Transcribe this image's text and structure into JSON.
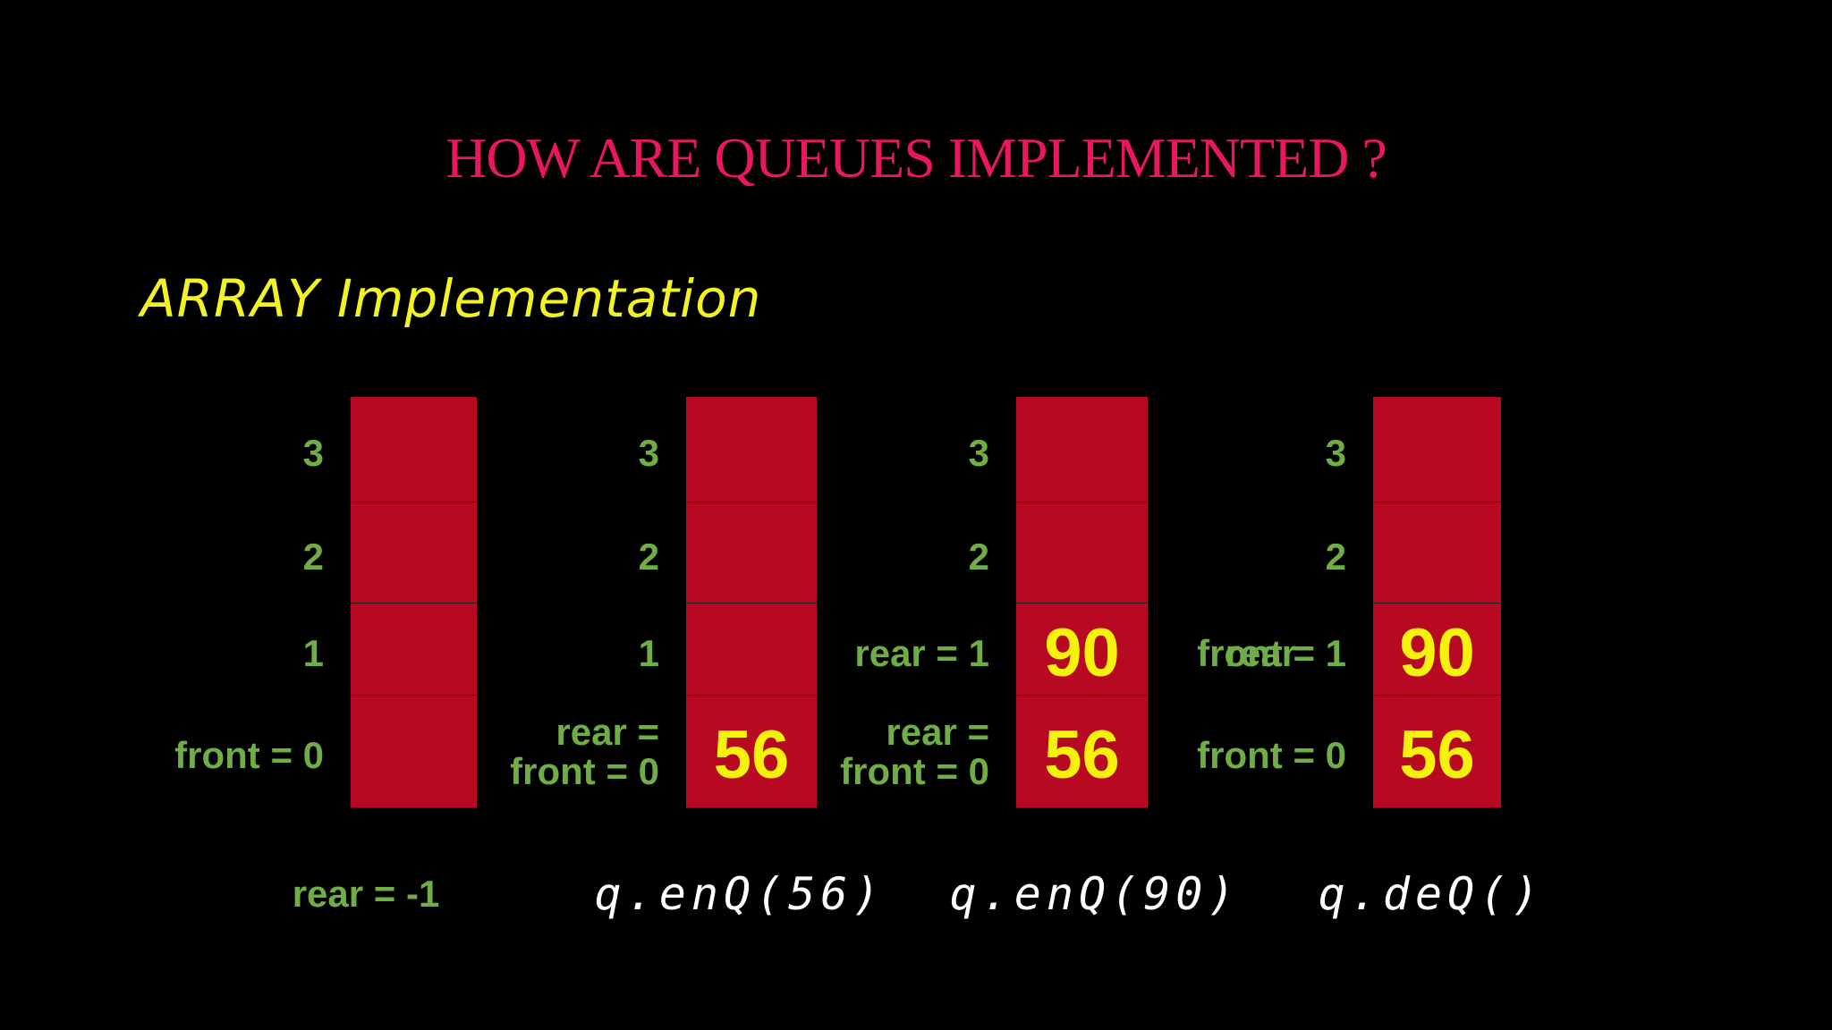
{
  "title": "HOW ARE QUEUES IMPLEMENTED ?",
  "subtitle": "ARRAY Implementation",
  "panels": [
    {
      "rows": [
        {
          "labels": [
            "3"
          ]
        },
        {
          "labels": [
            "2"
          ]
        },
        {
          "labels": [
            "1"
          ]
        },
        {
          "labels": [
            "front =  0"
          ]
        }
      ],
      "caption": "rear = -1"
    },
    {
      "rows": [
        {
          "labels": [
            "3"
          ]
        },
        {
          "labels": [
            "2"
          ]
        },
        {
          "labels": [
            "1"
          ]
        },
        {
          "labels": [
            "rear =",
            "front = 0"
          ],
          "value": 56
        }
      ],
      "caption": "q.enQ(56)"
    },
    {
      "rows": [
        {
          "labels": [
            "3"
          ]
        },
        {
          "labels": [
            "2"
          ]
        },
        {
          "labels": [
            "rear = 1"
          ],
          "value": 90
        },
        {
          "labels": [
            "rear =",
            "front = 0"
          ],
          "value": 56
        }
      ],
      "caption": "q.enQ(90)"
    },
    {
      "rows": [
        {
          "labels": [
            "3"
          ]
        },
        {
          "labels": [
            "2"
          ]
        },
        {
          "labels": [
            "front = 1"
          ],
          "overlay_label": "rear",
          "value": 90
        },
        {
          "labels": [
            "front = 0"
          ],
          "value": 56
        }
      ],
      "caption": "q.deQ()"
    }
  ]
}
